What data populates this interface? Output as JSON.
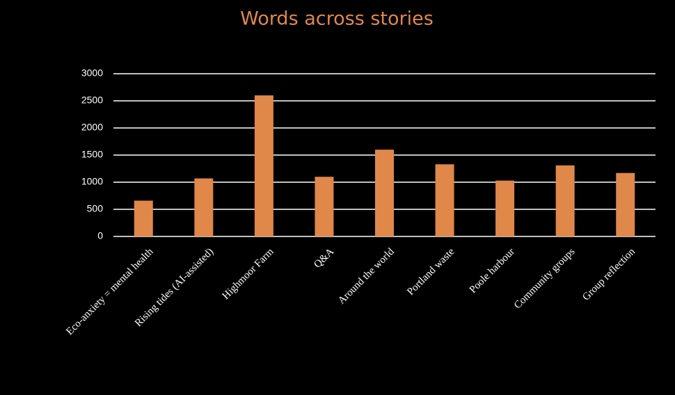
{
  "chart_data": {
    "type": "bar",
    "title": "Words across stories",
    "categories": [
      "Eco-anxiety = mental health",
      "Rising tides (AI-assisted)",
      "Highmoor Farm",
      "Q&A",
      "Around the world",
      "Portland waste",
      "Poole harbour",
      "Community groups",
      "Group reflection"
    ],
    "values": [
      660,
      1070,
      2600,
      1100,
      1600,
      1330,
      1030,
      1310,
      1170
    ],
    "color": "#e0874a",
    "ylim": [
      0,
      3000
    ],
    "yticks": [
      0,
      500,
      1000,
      1500,
      2000,
      2500,
      3000
    ],
    "grid": true
  }
}
